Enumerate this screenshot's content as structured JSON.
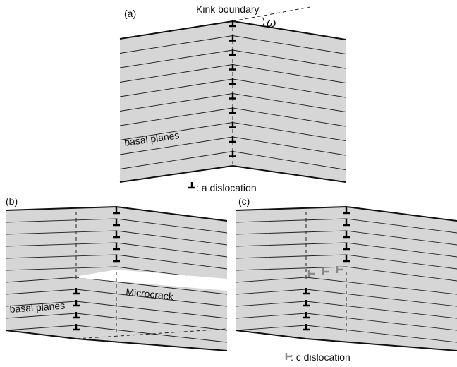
{
  "panels": [
    {
      "label": "(a)",
      "annotations": [
        "Kink boundary",
        "ω",
        "basal planes"
      ],
      "legend": ": a dislocation"
    },
    {
      "label": "(b)",
      "annotations": [
        "basal planes",
        "Microcrack"
      ]
    },
    {
      "label": "(c)",
      "legend": ": c dislocation"
    }
  ]
}
